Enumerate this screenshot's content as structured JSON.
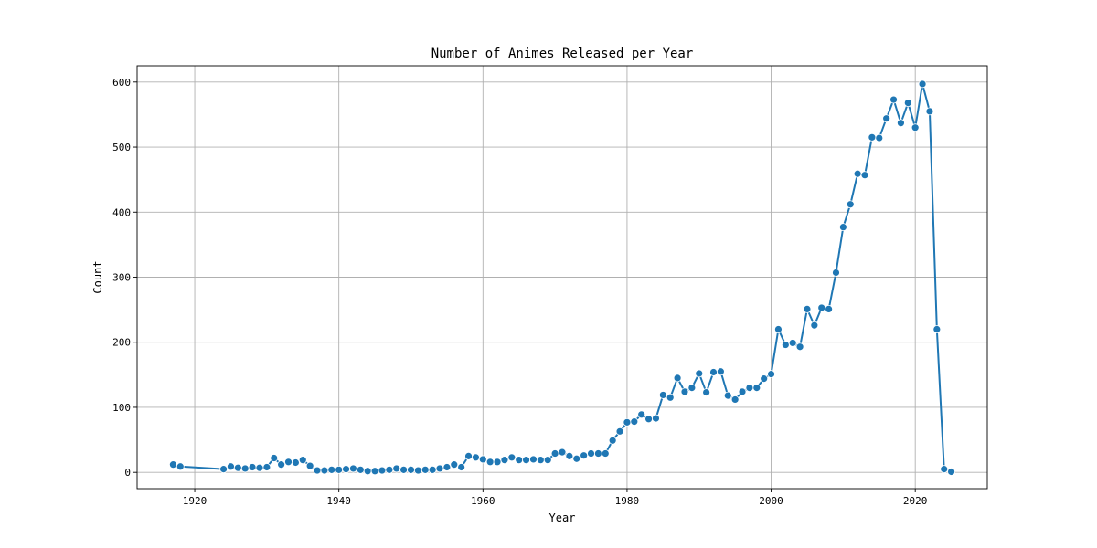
{
  "chart_data": {
    "type": "line",
    "title": "Number of Animes Released per Year",
    "xlabel": "Year",
    "ylabel": "Count",
    "xlim": [
      1912,
      2030
    ],
    "ylim": [
      -25,
      625
    ],
    "xticks": [
      1920,
      1940,
      1960,
      1980,
      2000,
      2020
    ],
    "yticks": [
      0,
      100,
      200,
      300,
      400,
      500,
      600
    ],
    "grid": true,
    "line_color": "#1f77b4",
    "marker": "circle",
    "series": [
      {
        "x": [
          1917,
          1918,
          1924,
          1925,
          1926,
          1927,
          1928,
          1929,
          1930,
          1931,
          1932,
          1933,
          1934,
          1935,
          1936,
          1937,
          1938,
          1939,
          1940,
          1941,
          1942,
          1943,
          1944,
          1945,
          1946,
          1947,
          1948,
          1949,
          1950,
          1951,
          1952,
          1953,
          1954,
          1955,
          1956,
          1957,
          1958,
          1959,
          1960,
          1961,
          1962,
          1963,
          1964,
          1965,
          1966,
          1967,
          1968,
          1969,
          1970,
          1971,
          1972,
          1973,
          1974,
          1975,
          1976,
          1977,
          1978,
          1979,
          1980,
          1981,
          1982,
          1983,
          1984,
          1985,
          1986,
          1987,
          1988,
          1989,
          1990,
          1991,
          1992,
          1993,
          1994,
          1995,
          1996,
          1997,
          1998,
          1999,
          2000,
          2001,
          2002,
          2003,
          2004,
          2005,
          2006,
          2007,
          2008,
          2009,
          2010,
          2011,
          2012,
          2013,
          2014,
          2015,
          2016,
          2017,
          2018,
          2019,
          2020,
          2021,
          2022,
          2023,
          2024,
          2025
        ],
        "y": [
          12,
          9,
          5,
          9,
          7,
          6,
          8,
          7,
          8,
          22,
          12,
          16,
          15,
          19,
          10,
          3,
          3,
          4,
          4,
          5,
          6,
          4,
          2,
          2,
          3,
          4,
          6,
          4,
          4,
          3,
          4,
          4,
          6,
          8,
          12,
          8,
          25,
          23,
          20,
          16,
          16,
          19,
          23,
          19,
          19,
          20,
          19,
          19,
          29,
          31,
          25,
          21,
          26,
          29,
          29,
          29,
          49,
          63,
          77,
          78,
          89,
          82,
          83,
          119,
          115,
          145,
          124,
          130,
          152,
          123,
          154,
          155,
          118,
          112,
          124,
          130,
          130,
          144,
          151,
          220,
          196,
          199,
          193,
          251,
          226,
          253,
          251,
          307,
          377,
          412,
          459,
          457,
          515,
          514,
          544,
          573,
          537,
          568,
          530,
          597,
          555,
          220,
          5,
          1
        ]
      }
    ]
  }
}
